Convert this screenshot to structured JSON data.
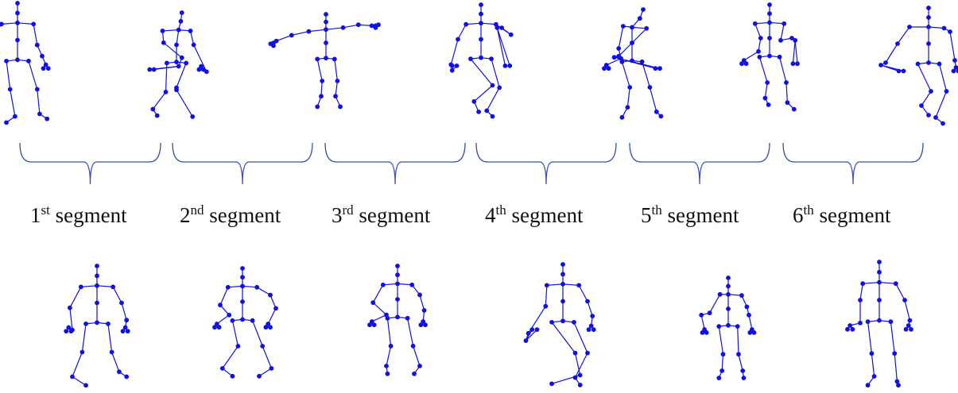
{
  "colors": {
    "skeleton": "#1010e0",
    "brace": "#3a4fb0",
    "text": "#111111"
  },
  "segments": [
    {
      "num": "1",
      "suffix": "st",
      "word": "segment"
    },
    {
      "num": "2",
      "suffix": "nd",
      "word": "segment"
    },
    {
      "num": "3",
      "suffix": "rd",
      "word": "segment"
    },
    {
      "num": "4",
      "suffix": "th",
      "word": "segment"
    },
    {
      "num": "5",
      "suffix": "th",
      "word": "segment"
    },
    {
      "num": "6",
      "suffix": "th",
      "word": "segment"
    }
  ],
  "rows": [
    {
      "position": "top",
      "frames": [
        {
          "pose": "stand-sway"
        },
        {
          "pose": "lean-back"
        },
        {
          "pose": "arms-out"
        },
        {
          "pose": "step-forward"
        },
        {
          "pose": "arm-raised"
        },
        {
          "pose": "walk-left"
        },
        {
          "pose": "arm-swing"
        }
      ]
    },
    {
      "position": "bottom",
      "frames": [
        {
          "pose": "wide-stance"
        },
        {
          "pose": "arms-spread"
        },
        {
          "pose": "stride"
        },
        {
          "pose": "lunge"
        },
        {
          "pose": "compact-stand"
        },
        {
          "pose": "upright"
        }
      ]
    }
  ]
}
